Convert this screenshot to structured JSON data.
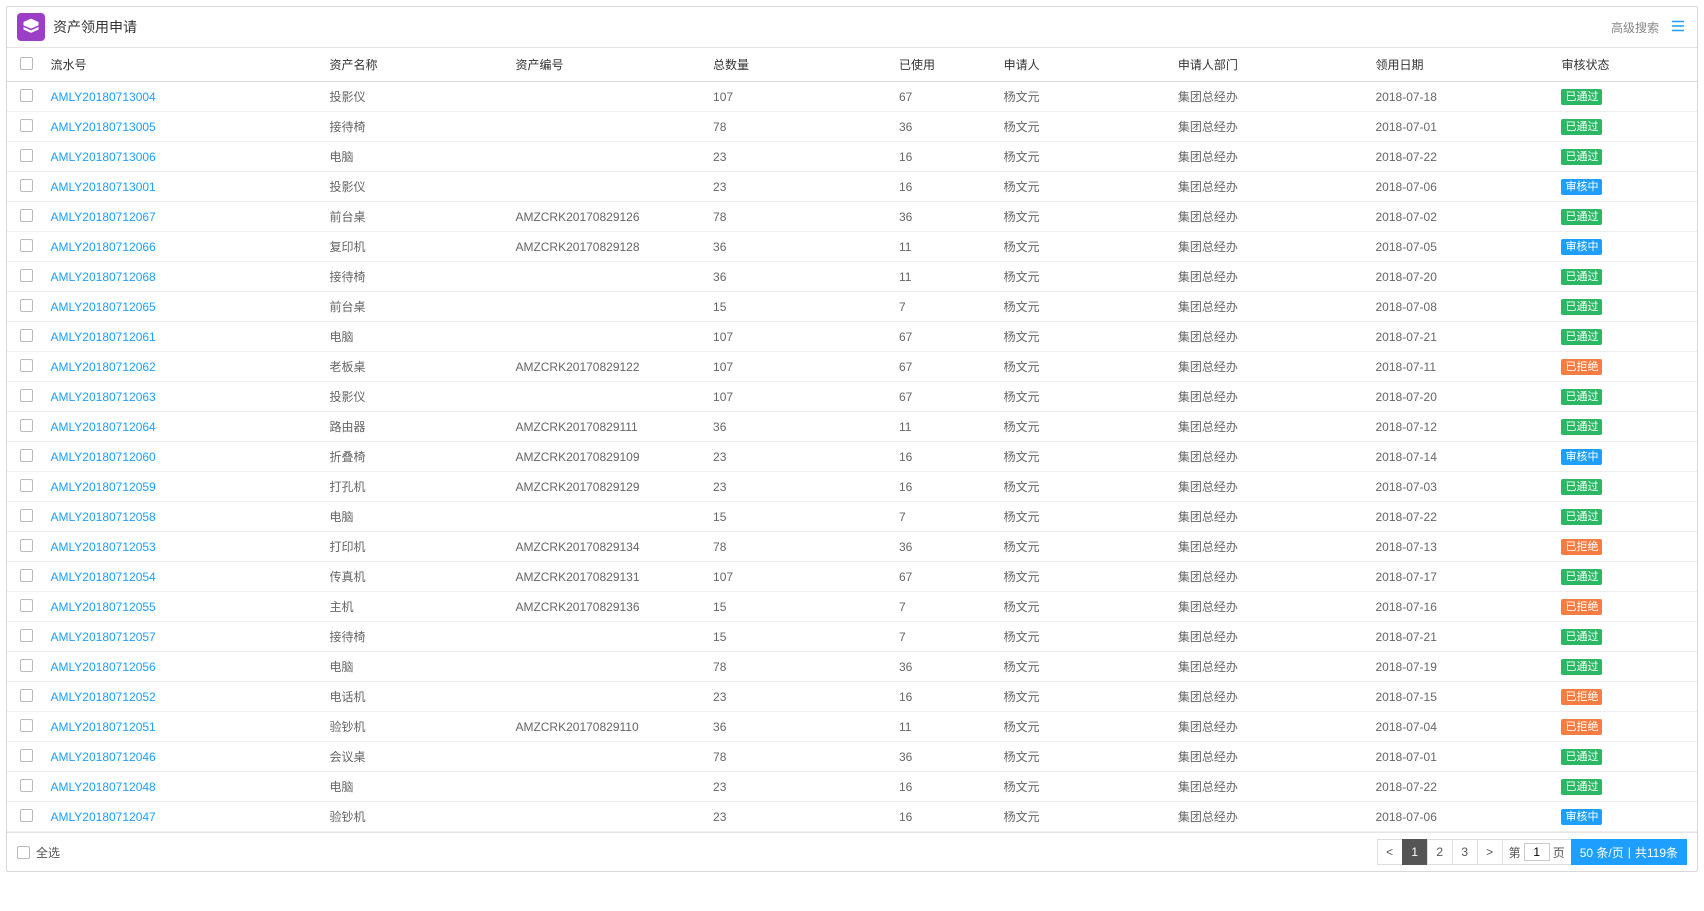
{
  "header": {
    "title": "资产领用申请",
    "advanced_search": "高级搜索"
  },
  "columns": {
    "serial": "流水号",
    "asset_name": "资产名称",
    "asset_code": "资产编号",
    "total_qty": "总数量",
    "used": "已使用",
    "applicant": "申请人",
    "dept": "申请人部门",
    "date": "领用日期",
    "status": "审核状态"
  },
  "status_colors": {
    "passed": "#2cb765",
    "reviewing": "#1e9fff",
    "rejected": "#f77c41"
  },
  "status_labels": {
    "passed": "已通过",
    "reviewing": "审核中",
    "rejected": "已拒绝"
  },
  "applicant_default": "杨文元",
  "dept_default": "集团总经办",
  "rows": [
    {
      "serial": "AMLY20180713004",
      "name": "投影仪",
      "code": "",
      "total": "107",
      "used": "67",
      "date": "2018-07-18",
      "status": "passed"
    },
    {
      "serial": "AMLY20180713005",
      "name": "接待椅",
      "code": "",
      "total": "78",
      "used": "36",
      "date": "2018-07-01",
      "status": "passed"
    },
    {
      "serial": "AMLY20180713006",
      "name": "电脑",
      "code": "",
      "total": "23",
      "used": "16",
      "date": "2018-07-22",
      "status": "passed"
    },
    {
      "serial": "AMLY20180713001",
      "name": "投影仪",
      "code": "",
      "total": "23",
      "used": "16",
      "date": "2018-07-06",
      "status": "reviewing"
    },
    {
      "serial": "AMLY20180712067",
      "name": "前台桌",
      "code": "AMZCRK20170829126",
      "total": "78",
      "used": "36",
      "date": "2018-07-02",
      "status": "passed"
    },
    {
      "serial": "AMLY20180712066",
      "name": "复印机",
      "code": "AMZCRK20170829128",
      "total": "36",
      "used": "11",
      "date": "2018-07-05",
      "status": "reviewing"
    },
    {
      "serial": "AMLY20180712068",
      "name": "接待椅",
      "code": "",
      "total": "36",
      "used": "11",
      "date": "2018-07-20",
      "status": "passed"
    },
    {
      "serial": "AMLY20180712065",
      "name": "前台桌",
      "code": "",
      "total": "15",
      "used": "7",
      "date": "2018-07-08",
      "status": "passed"
    },
    {
      "serial": "AMLY20180712061",
      "name": "电脑",
      "code": "",
      "total": "107",
      "used": "67",
      "date": "2018-07-21",
      "status": "passed"
    },
    {
      "serial": "AMLY20180712062",
      "name": "老板桌",
      "code": "AMZCRK20170829122",
      "total": "107",
      "used": "67",
      "date": "2018-07-11",
      "status": "rejected"
    },
    {
      "serial": "AMLY20180712063",
      "name": "投影仪",
      "code": "",
      "total": "107",
      "used": "67",
      "date": "2018-07-20",
      "status": "passed"
    },
    {
      "serial": "AMLY20180712064",
      "name": "路由器",
      "code": "AMZCRK20170829111",
      "total": "36",
      "used": "11",
      "date": "2018-07-12",
      "status": "passed"
    },
    {
      "serial": "AMLY20180712060",
      "name": "折叠椅",
      "code": "AMZCRK20170829109",
      "total": "23",
      "used": "16",
      "date": "2018-07-14",
      "status": "reviewing"
    },
    {
      "serial": "AMLY20180712059",
      "name": "打孔机",
      "code": "AMZCRK20170829129",
      "total": "23",
      "used": "16",
      "date": "2018-07-03",
      "status": "passed"
    },
    {
      "serial": "AMLY20180712058",
      "name": "电脑",
      "code": "",
      "total": "15",
      "used": "7",
      "date": "2018-07-22",
      "status": "passed"
    },
    {
      "serial": "AMLY20180712053",
      "name": "打印机",
      "code": "AMZCRK20170829134",
      "total": "78",
      "used": "36",
      "date": "2018-07-13",
      "status": "rejected"
    },
    {
      "serial": "AMLY20180712054",
      "name": "传真机",
      "code": "AMZCRK20170829131",
      "total": "107",
      "used": "67",
      "date": "2018-07-17",
      "status": "passed"
    },
    {
      "serial": "AMLY20180712055",
      "name": "主机",
      "code": "AMZCRK20170829136",
      "total": "15",
      "used": "7",
      "date": "2018-07-16",
      "status": "rejected"
    },
    {
      "serial": "AMLY20180712057",
      "name": "接待椅",
      "code": "",
      "total": "15",
      "used": "7",
      "date": "2018-07-21",
      "status": "passed"
    },
    {
      "serial": "AMLY20180712056",
      "name": "电脑",
      "code": "",
      "total": "78",
      "used": "36",
      "date": "2018-07-19",
      "status": "passed"
    },
    {
      "serial": "AMLY20180712052",
      "name": "电话机",
      "code": "",
      "total": "23",
      "used": "16",
      "date": "2018-07-15",
      "status": "rejected"
    },
    {
      "serial": "AMLY20180712051",
      "name": "验钞机",
      "code": "AMZCRK20170829110",
      "total": "36",
      "used": "11",
      "date": "2018-07-04",
      "status": "rejected"
    },
    {
      "serial": "AMLY20180712046",
      "name": "会议桌",
      "code": "",
      "total": "78",
      "used": "36",
      "date": "2018-07-01",
      "status": "passed"
    },
    {
      "serial": "AMLY20180712048",
      "name": "电脑",
      "code": "",
      "total": "23",
      "used": "16",
      "date": "2018-07-22",
      "status": "passed"
    },
    {
      "serial": "AMLY20180712047",
      "name": "验钞机",
      "code": "",
      "total": "23",
      "used": "16",
      "date": "2018-07-06",
      "status": "reviewing"
    }
  ],
  "footer": {
    "select_all": "全选",
    "prev": "<",
    "next": ">",
    "pages": [
      "1",
      "2",
      "3"
    ],
    "active_page": "1",
    "page_label_prefix": "第",
    "page_label_suffix": "页",
    "page_input": "1",
    "size_label": "50 条/页",
    "total_label": "共119条"
  },
  "col_widths": {
    "chk": "34px",
    "serial": "240px",
    "name": "160px",
    "code": "170px",
    "total": "160px",
    "used": "90px",
    "applicant": "150px",
    "dept": "170px",
    "date": "160px",
    "status": "120px"
  }
}
